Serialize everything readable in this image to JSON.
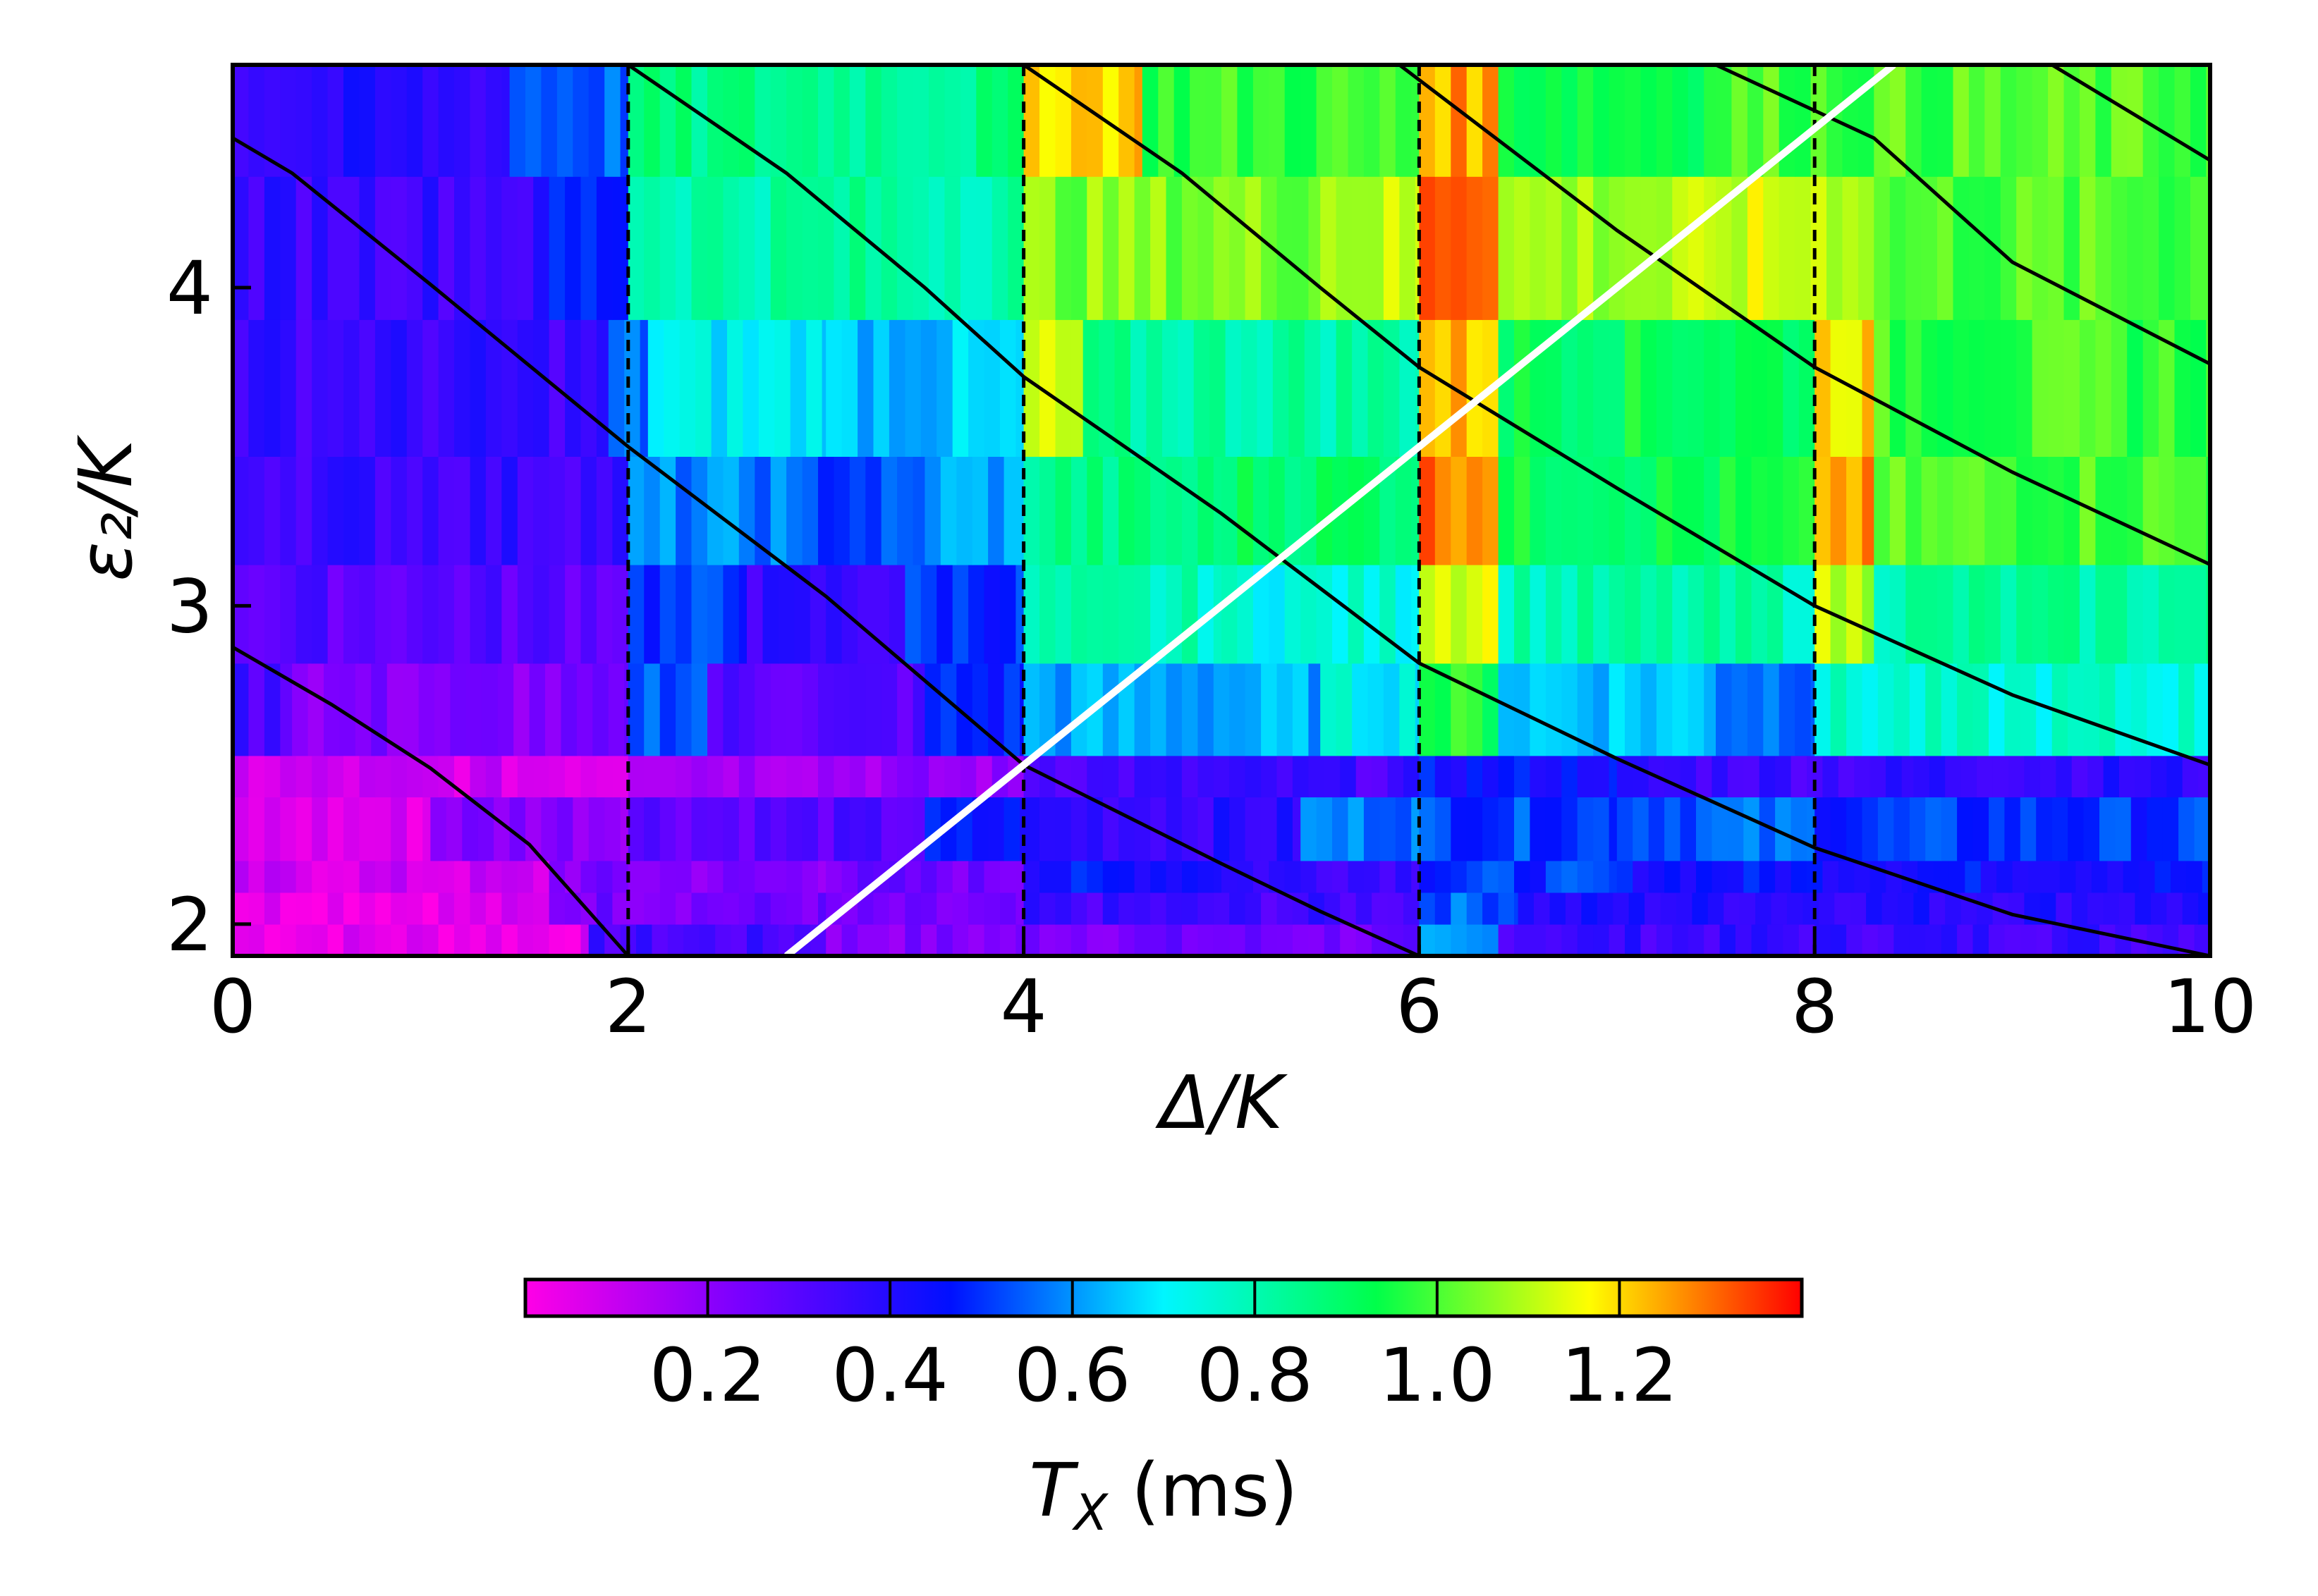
{
  "chart_data": {
    "type": "heatmap",
    "title": "",
    "xlabel": "Δ/K",
    "ylabel": "ε₂/K",
    "xlim": [
      0,
      10
    ],
    "ylim": [
      1.9,
      4.7
    ],
    "x_ticks": [
      {
        "value": 0,
        "label": "0"
      },
      {
        "value": 2,
        "label": "2"
      },
      {
        "value": 4,
        "label": "4"
      },
      {
        "value": 6,
        "label": "6"
      },
      {
        "value": 8,
        "label": "8"
      },
      {
        "value": 10,
        "label": "10"
      }
    ],
    "y_ticks": [
      {
        "value": 2,
        "label": "2"
      },
      {
        "value": 3,
        "label": "3"
      },
      {
        "value": 4,
        "label": "4"
      }
    ],
    "colorbar": {
      "label": "T_X (ms)",
      "label_main": "T",
      "label_sub": "X",
      "label_rest": " (ms)",
      "range": [
        0,
        1.4
      ],
      "ticks": [
        {
          "value": 0.2,
          "label": "0.2"
        },
        {
          "value": 0.4,
          "label": "0.4"
        },
        {
          "value": 0.6,
          "label": "0.6"
        },
        {
          "value": 0.8,
          "label": "0.8"
        },
        {
          "value": 1.0,
          "label": "1.0"
        },
        {
          "value": 1.2,
          "label": "1.2"
        }
      ],
      "colormap": "gist_rainbow_r",
      "colors": [
        "#ff00e6",
        "#7a00ff",
        "#0010ff",
        "#00f6ff",
        "#00ff4a",
        "#fffe00",
        "#ff0000"
      ]
    },
    "grid": false,
    "rows": [
      {
        "y0": 1.9,
        "y1": 2.0,
        "segments": [
          [
            0,
            1.8,
            0.05
          ],
          [
            1.8,
            3.0,
            0.33
          ],
          [
            3.0,
            4.0,
            0.22
          ],
          [
            4.0,
            6.0,
            0.25
          ],
          [
            6.0,
            6.4,
            0.58
          ],
          [
            6.4,
            10,
            0.36
          ]
        ]
      },
      {
        "y0": 2.0,
        "y1": 2.1,
        "segments": [
          [
            0,
            1.6,
            0.05
          ],
          [
            1.6,
            3.0,
            0.25
          ],
          [
            3.0,
            4.0,
            0.22
          ],
          [
            4.0,
            6.0,
            0.34
          ],
          [
            6.0,
            6.5,
            0.55
          ],
          [
            6.5,
            10,
            0.4
          ]
        ]
      },
      {
        "y0": 2.1,
        "y1": 2.2,
        "segments": [
          [
            0,
            1.6,
            0.08
          ],
          [
            1.6,
            3.0,
            0.22
          ],
          [
            3.0,
            4.0,
            0.25
          ],
          [
            4.0,
            5.0,
            0.45
          ],
          [
            5.0,
            6.0,
            0.38
          ],
          [
            6.0,
            7.0,
            0.5
          ],
          [
            7.0,
            10,
            0.45
          ]
        ]
      },
      {
        "y0": 2.2,
        "y1": 2.4,
        "segments": [
          [
            0,
            1.0,
            0.06
          ],
          [
            1.0,
            2.0,
            0.22
          ],
          [
            2.0,
            3.5,
            0.3
          ],
          [
            3.5,
            4.0,
            0.45
          ],
          [
            4.0,
            5.4,
            0.38
          ],
          [
            5.4,
            6.0,
            0.58
          ],
          [
            6.0,
            7.0,
            0.52
          ],
          [
            7.0,
            8.0,
            0.55
          ],
          [
            8.0,
            10,
            0.5
          ]
        ]
      },
      {
        "y0": 2.4,
        "y1": 2.53,
        "segments": [
          [
            0,
            2.0,
            0.08
          ],
          [
            2.0,
            4.0,
            0.18
          ],
          [
            4.0,
            6.0,
            0.34
          ],
          [
            6.0,
            7.0,
            0.45
          ],
          [
            7.0,
            8.5,
            0.36
          ],
          [
            8.5,
            10,
            0.38
          ]
        ]
      },
      {
        "y0": 2.53,
        "y1": 2.82,
        "segments": [
          [
            0,
            0.3,
            0.33
          ],
          [
            0.3,
            2.0,
            0.22
          ],
          [
            2.0,
            2.4,
            0.55
          ],
          [
            2.4,
            3.5,
            0.3
          ],
          [
            3.5,
            4.0,
            0.48
          ],
          [
            4.0,
            5.5,
            0.62
          ],
          [
            5.5,
            6.0,
            0.72
          ],
          [
            6.0,
            6.4,
            0.95
          ],
          [
            6.4,
            7.5,
            0.66
          ],
          [
            7.5,
            8.0,
            0.58
          ],
          [
            8.0,
            10,
            0.75
          ]
        ]
      },
      {
        "y0": 2.82,
        "y1": 3.13,
        "segments": [
          [
            0,
            2.0,
            0.3
          ],
          [
            2.0,
            2.6,
            0.5
          ],
          [
            2.6,
            3.4,
            0.36
          ],
          [
            3.4,
            4.0,
            0.5
          ],
          [
            4.0,
            5.0,
            0.78
          ],
          [
            5.0,
            6.0,
            0.74
          ],
          [
            6.0,
            6.4,
            1.15
          ],
          [
            6.4,
            8.0,
            0.8
          ],
          [
            8.0,
            8.3,
            1.1
          ],
          [
            8.3,
            10,
            0.82
          ]
        ]
      },
      {
        "y0": 3.13,
        "y1": 3.47,
        "segments": [
          [
            0,
            2.0,
            0.36
          ],
          [
            2.0,
            2.8,
            0.58
          ],
          [
            2.8,
            3.5,
            0.52
          ],
          [
            3.5,
            4.0,
            0.62
          ],
          [
            4.0,
            5.0,
            0.85
          ],
          [
            5.0,
            6.0,
            0.9
          ],
          [
            6.0,
            6.4,
            1.3
          ],
          [
            6.4,
            8.0,
            0.92
          ],
          [
            8.0,
            8.3,
            1.25
          ],
          [
            8.3,
            10,
            1.0
          ]
        ]
      },
      {
        "y0": 3.47,
        "y1": 3.9,
        "segments": [
          [
            0,
            1.9,
            0.36
          ],
          [
            1.9,
            2.1,
            0.55
          ],
          [
            2.1,
            3.0,
            0.7
          ],
          [
            3.0,
            4.0,
            0.65
          ],
          [
            4.0,
            4.3,
            1.1
          ],
          [
            4.3,
            6.0,
            0.82
          ],
          [
            6.0,
            6.4,
            1.22
          ],
          [
            6.4,
            8.0,
            0.92
          ],
          [
            8.0,
            8.3,
            1.2
          ],
          [
            8.3,
            10,
            0.98
          ]
        ]
      },
      {
        "y0": 3.9,
        "y1": 4.35,
        "segments": [
          [
            0,
            1.6,
            0.36
          ],
          [
            1.6,
            2.0,
            0.48
          ],
          [
            2.0,
            4.0,
            0.82
          ],
          [
            4.0,
            5.5,
            1.05
          ],
          [
            5.5,
            6.0,
            1.1
          ],
          [
            6.0,
            6.4,
            1.35
          ],
          [
            6.4,
            7.5,
            1.08
          ],
          [
            7.5,
            8.3,
            1.12
          ],
          [
            8.3,
            10,
            1.0
          ]
        ]
      },
      {
        "y0": 4.35,
        "y1": 4.7,
        "segments": [
          [
            0,
            1.4,
            0.38
          ],
          [
            1.4,
            2.0,
            0.55
          ],
          [
            2.0,
            4.0,
            0.85
          ],
          [
            4.0,
            4.6,
            1.22
          ],
          [
            4.6,
            6.0,
            0.98
          ],
          [
            6.0,
            6.4,
            1.25
          ],
          [
            6.4,
            7.5,
            0.95
          ],
          [
            7.5,
            10,
            1.0
          ]
        ]
      }
    ],
    "vlines": [
      2,
      4,
      6,
      8
    ],
    "diagonal": {
      "color": "#ffffff",
      "points": [
        [
          2.8,
          1.9
        ],
        [
          8.4,
          4.7
        ]
      ]
    },
    "curves": [
      {
        "points": [
          [
            0,
            2.87
          ],
          [
            0.5,
            2.69
          ],
          [
            1.0,
            2.49
          ],
          [
            1.5,
            2.25
          ],
          [
            2.0,
            1.9
          ]
        ]
      },
      {
        "points": [
          [
            0,
            4.47
          ],
          [
            0.3,
            4.36
          ],
          [
            1.0,
            4.01
          ],
          [
            2.0,
            3.5
          ],
          [
            3.0,
            3.03
          ],
          [
            4.0,
            2.5
          ],
          [
            5.0,
            2.19
          ],
          [
            5.5,
            2.04
          ],
          [
            6.0,
            1.9
          ]
        ]
      },
      {
        "points": [
          [
            2.0,
            4.7
          ],
          [
            2.8,
            4.36
          ],
          [
            3.5,
            4.0
          ],
          [
            4.0,
            3.72
          ],
          [
            5.0,
            3.29
          ],
          [
            6.0,
            2.82
          ],
          [
            7.0,
            2.52
          ],
          [
            8.0,
            2.24
          ],
          [
            9.0,
            2.03
          ],
          [
            10.0,
            1.9
          ]
        ]
      },
      {
        "points": [
          [
            4.0,
            4.7
          ],
          [
            4.8,
            4.36
          ],
          [
            5.5,
            4.0
          ],
          [
            6.0,
            3.75
          ],
          [
            7.0,
            3.37
          ],
          [
            8.0,
            3.0
          ],
          [
            9.0,
            2.72
          ],
          [
            10.0,
            2.5
          ]
        ]
      },
      {
        "points": [
          [
            5.9,
            4.7
          ],
          [
            7.0,
            4.18
          ],
          [
            8.0,
            3.75
          ],
          [
            9.0,
            3.42
          ],
          [
            10.0,
            3.13
          ]
        ]
      },
      {
        "points": [
          [
            7.5,
            4.7
          ],
          [
            8.3,
            4.47
          ],
          [
            9.0,
            4.08
          ],
          [
            10.0,
            3.76
          ]
        ]
      },
      {
        "points": [
          [
            9.2,
            4.7
          ],
          [
            10.0,
            4.4
          ]
        ]
      }
    ]
  }
}
